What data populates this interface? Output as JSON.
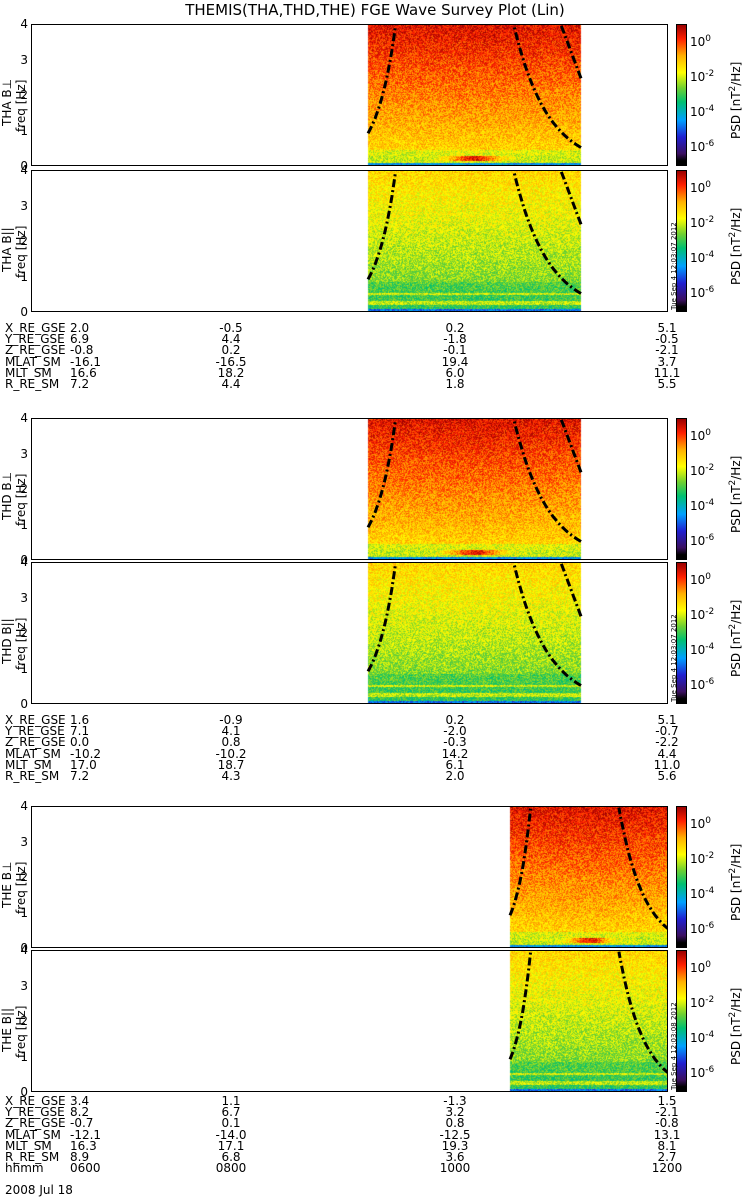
{
  "chart_data": {
    "type": "heatmap",
    "title": "THEMIS(THA,THD,THE) FGE Wave Survey Plot (Lin)",
    "date": "2008 Jul 18",
    "ylabel": "freq [Hz]",
    "ylim": [
      0,
      4
    ],
    "yticks": [
      "0",
      "1",
      "2",
      "3",
      "4"
    ],
    "xlim": [
      "0600",
      "1200"
    ],
    "xticks": [
      "0600",
      "0800",
      "1000",
      "1200"
    ],
    "colorbar": {
      "label": "PSD [nT²/Hz]",
      "label_base": "PSD [nT",
      "label_exp": "2",
      "label_tail": "/Hz]",
      "scale": "log",
      "ticks": [
        {
          "base": "10",
          "exp": "0"
        },
        {
          "base": "10",
          "exp": "-2"
        },
        {
          "base": "10",
          "exp": "-4"
        },
        {
          "base": "10",
          "exp": "-6"
        }
      ],
      "colors": [
        "#000000",
        "#2020d0",
        "#00a0ff",
        "#00c070",
        "#ffff00",
        "#ffb000",
        "#ff2000",
        "#9a0000"
      ]
    },
    "panels": [
      {
        "name": "THA B⊥",
        "data_start": "0910",
        "data_end": "1110",
        "stamp": ""
      },
      {
        "name": "THA B||",
        "data_start": "0910",
        "data_end": "1110",
        "stamp": "Tue Sep 4 12:03:07 2012"
      },
      {
        "name": "THD B⊥",
        "data_start": "0910",
        "data_end": "1110",
        "stamp": ""
      },
      {
        "name": "THD B||",
        "data_start": "0910",
        "data_end": "1110",
        "stamp": "Tue Sep 4 12:03:07 2012"
      },
      {
        "name": "THE B⊥",
        "data_start": "1030",
        "data_end": "1200",
        "stamp": ""
      },
      {
        "name": "THE B||",
        "data_start": "1030",
        "data_end": "1200",
        "stamp": "Tue Sep 4 12:03:08 2012"
      }
    ],
    "ephemeris": [
      {
        "probe": "THA",
        "rows": [
          {
            "label": "X_RE_GSE",
            "values": [
              "2.0",
              "-0.5",
              "0.2",
              "5.1"
            ]
          },
          {
            "label": "Y_RE_GSE",
            "values": [
              "6.9",
              "4.4",
              "-1.8",
              "-0.5"
            ]
          },
          {
            "label": "Z_RE_GSE",
            "values": [
              "-0.8",
              "0.2",
              "-0.1",
              "-2.1"
            ]
          },
          {
            "label": "MLAT_SM",
            "values": [
              "-16.1",
              "-16.5",
              "19.4",
              "3.7"
            ]
          },
          {
            "label": "MLT_SM",
            "values": [
              "16.6",
              "18.2",
              "6.0",
              "11.1"
            ]
          },
          {
            "label": "R_RE_SM",
            "values": [
              "7.2",
              "4.4",
              "1.8",
              "5.5"
            ]
          }
        ]
      },
      {
        "probe": "THD",
        "rows": [
          {
            "label": "X_RE_GSE",
            "values": [
              "1.6",
              "-0.9",
              "0.2",
              "5.1"
            ]
          },
          {
            "label": "Y_RE_GSE",
            "values": [
              "7.1",
              "4.1",
              "-2.0",
              "-0.7"
            ]
          },
          {
            "label": "Z_RE_GSE",
            "values": [
              "0.0",
              "0.8",
              "-0.3",
              "-2.2"
            ]
          },
          {
            "label": "MLAT_SM",
            "values": [
              "-10.2",
              "-10.2",
              "14.2",
              "4.4"
            ]
          },
          {
            "label": "MLT_SM",
            "values": [
              "17.0",
              "18.7",
              "6.1",
              "11.0"
            ]
          },
          {
            "label": "R_RE_SM",
            "values": [
              "7.2",
              "4.3",
              "2.0",
              "5.6"
            ]
          }
        ]
      },
      {
        "probe": "THE",
        "rows": [
          {
            "label": "X_RE_GSE",
            "values": [
              "3.4",
              "1.1",
              "-1.3",
              "1.5"
            ]
          },
          {
            "label": "Y_RE_GSE",
            "values": [
              "8.2",
              "6.7",
              "3.2",
              "-2.1"
            ]
          },
          {
            "label": "Z_RE_GSE",
            "values": [
              "-0.7",
              "0.1",
              "0.8",
              "-0.8"
            ]
          },
          {
            "label": "MLAT_SM",
            "values": [
              "-12.1",
              "-14.0",
              "-12.5",
              "13.1"
            ]
          },
          {
            "label": "MLT_SM",
            "values": [
              "16.3",
              "17.1",
              "19.3",
              "8.1"
            ]
          },
          {
            "label": "R_RE_SM",
            "values": [
              "8.9",
              "6.8",
              "3.6",
              "2.7"
            ]
          },
          {
            "label": "hhmm",
            "values": [
              "0600",
              "0800",
              "1000",
              "1200"
            ]
          }
        ]
      }
    ]
  }
}
